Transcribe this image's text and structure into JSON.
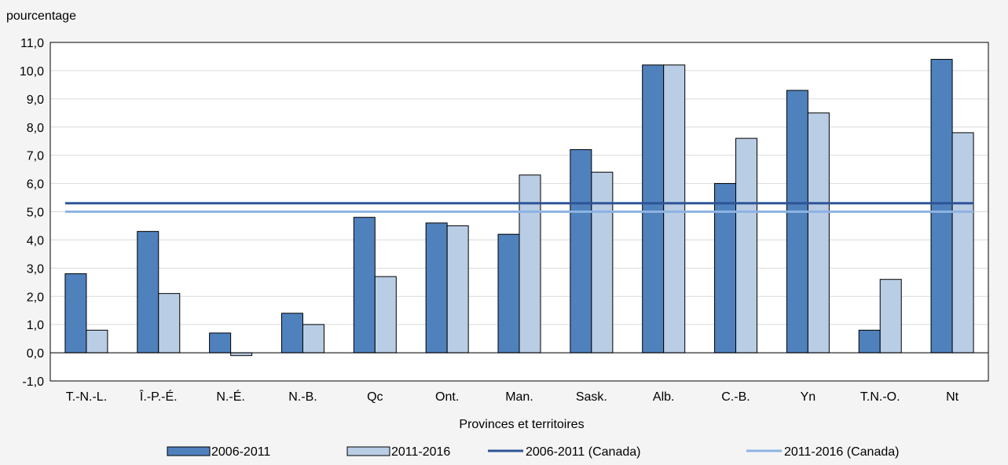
{
  "chart_data": {
    "type": "bar",
    "ylabel": "pourcentage",
    "xlabel": "Provinces et territoires",
    "ylim": [
      -1.0,
      11.0
    ],
    "y_ticks": [
      "-1,0",
      "0,0",
      "1,0",
      "2,0",
      "3,0",
      "4,0",
      "5,0",
      "6,0",
      "7,0",
      "8,0",
      "9,0",
      "10,0",
      "11,0"
    ],
    "grid": true,
    "legend_position": "bottom",
    "categories": [
      "T.-N.-L.",
      "Î.-P.-É.",
      "N.-É.",
      "N.-B.",
      "Qc",
      "Ont.",
      "Man.",
      "Sask.",
      "Alb.",
      "C.-B.",
      "Yn",
      "T.N.-O.",
      "Nt"
    ],
    "series": [
      {
        "name": "2006-2011",
        "color": "#4f81bd",
        "values": [
          2.8,
          4.3,
          0.7,
          1.4,
          4.8,
          4.6,
          4.2,
          7.2,
          10.2,
          6.0,
          9.3,
          0.8,
          10.4
        ]
      },
      {
        "name": "2011-2016",
        "color": "#b9cde5",
        "values": [
          0.8,
          2.1,
          -0.1,
          1.0,
          2.7,
          4.5,
          6.3,
          6.4,
          10.2,
          7.6,
          8.5,
          2.6,
          7.8
        ]
      }
    ],
    "reference_lines": [
      {
        "name": "2006-2011 (Canada)",
        "value": 5.3,
        "color": "#2f5597"
      },
      {
        "name": "2011-2016 (Canada)",
        "value": 5.0,
        "color": "#8db3e2"
      }
    ]
  }
}
